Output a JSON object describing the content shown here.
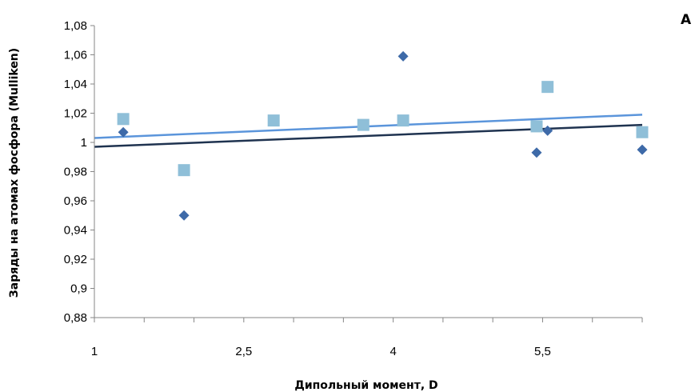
{
  "chart_data": {
    "type": "scatter",
    "panel_label": "A",
    "title": "",
    "xlabel": "Дипольный момент, D",
    "ylabel": "Заряды на атомах фосфора (Mulliken)",
    "xlim": [
      1,
      6.5
    ],
    "ylim": [
      0.88,
      1.08
    ],
    "x_ticks": [
      1,
      2.5,
      4,
      5.5
    ],
    "x_tick_labels": [
      "1",
      "2,5",
      "4",
      "5,5"
    ],
    "y_ticks": [
      0.88,
      0.9,
      0.92,
      0.94,
      0.96,
      0.98,
      1.0,
      1.02,
      1.04,
      1.06,
      1.08
    ],
    "y_tick_labels": [
      "0,88",
      "0,9",
      "0,92",
      "0,94",
      "0,96",
      "0,98",
      "1",
      "1,02",
      "1,04",
      "1,06",
      "1,08"
    ],
    "grid": false,
    "legend": "none",
    "series": [
      {
        "marker": "diamond",
        "color": "#3e6aa8",
        "points": [
          [
            1.29,
            1.007
          ],
          [
            1.9,
            0.95
          ],
          [
            4.1,
            1.059
          ],
          [
            5.44,
            0.993
          ],
          [
            5.55,
            1.008
          ],
          [
            6.5,
            0.995
          ]
        ],
        "trendline": {
          "color": "#1f3350",
          "from": [
            1.0,
            0.997
          ],
          "to": [
            6.5,
            1.012
          ]
        }
      },
      {
        "marker": "square",
        "color": "#8fbfd8",
        "points": [
          [
            1.29,
            1.016
          ],
          [
            1.9,
            0.981
          ],
          [
            2.8,
            1.015
          ],
          [
            3.7,
            1.012
          ],
          [
            4.1,
            1.015
          ],
          [
            5.44,
            1.011
          ],
          [
            5.55,
            1.038
          ],
          [
            6.5,
            1.007
          ]
        ],
        "trendline": {
          "color": "#5b95db",
          "from": [
            1.0,
            1.003
          ],
          "to": [
            6.5,
            1.019
          ]
        }
      }
    ]
  }
}
